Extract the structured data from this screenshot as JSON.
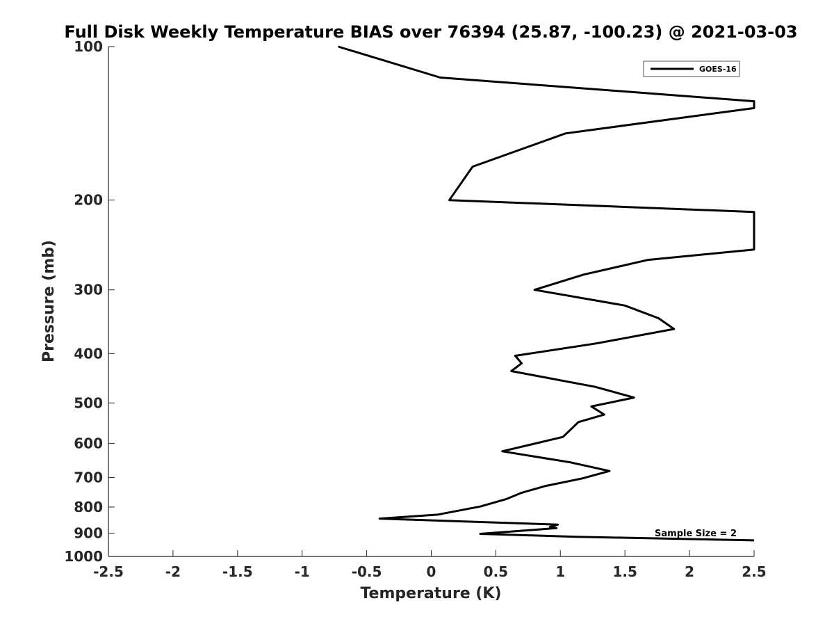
{
  "chart_data": {
    "type": "line",
    "title": "Full Disk Weekly Temperature BIAS over 76394 (25.87, -100.23) @ 2021-03-03",
    "xlabel": "Temperature (K)",
    "ylabel": "Pressure (mb)",
    "xlim": [
      -2.5,
      2.5
    ],
    "ylim": [
      100,
      1000
    ],
    "y_scale": "log",
    "y_reversed": true,
    "xticks": [
      -2.5,
      -2,
      -1.5,
      -1,
      -0.5,
      0,
      0.5,
      1,
      1.5,
      2,
      2.5
    ],
    "xtick_labels": [
      "-2.5",
      "-2",
      "-1.5",
      "-1",
      "-0.5",
      "0",
      "0.5",
      "1",
      "1.5",
      "2",
      "2.5"
    ],
    "yticks": [
      100,
      200,
      300,
      400,
      500,
      600,
      700,
      800,
      900,
      1000
    ],
    "ytick_labels": [
      "100",
      "200",
      "300",
      "400",
      "500",
      "600",
      "700",
      "800",
      "900",
      "1000"
    ],
    "grid": false,
    "legend_position": "top-right",
    "line_color": "#000000",
    "series": [
      {
        "name": "GOES-16",
        "points": [
          {
            "x": -0.72,
            "p": 100
          },
          {
            "x": 0.07,
            "p": 115
          },
          {
            "x": 2.5,
            "p": 128
          },
          {
            "x": 2.5,
            "p": 132
          },
          {
            "x": 1.04,
            "p": 148
          },
          {
            "x": 0.32,
            "p": 172
          },
          {
            "x": 0.14,
            "p": 200
          },
          {
            "x": 2.5,
            "p": 211
          },
          {
            "x": 2.5,
            "p": 250
          },
          {
            "x": 1.68,
            "p": 262
          },
          {
            "x": 1.18,
            "p": 280
          },
          {
            "x": 0.8,
            "p": 300
          },
          {
            "x": 1.5,
            "p": 322
          },
          {
            "x": 1.76,
            "p": 341
          },
          {
            "x": 1.88,
            "p": 358
          },
          {
            "x": 1.28,
            "p": 382
          },
          {
            "x": 0.65,
            "p": 404
          },
          {
            "x": 0.7,
            "p": 418
          },
          {
            "x": 0.62,
            "p": 433
          },
          {
            "x": 1.27,
            "p": 465
          },
          {
            "x": 1.57,
            "p": 488
          },
          {
            "x": 1.24,
            "p": 508
          },
          {
            "x": 1.34,
            "p": 527
          },
          {
            "x": 1.14,
            "p": 545
          },
          {
            "x": 1.02,
            "p": 583
          },
          {
            "x": 0.55,
            "p": 622
          },
          {
            "x": 1.08,
            "p": 654
          },
          {
            "x": 1.38,
            "p": 680
          },
          {
            "x": 1.17,
            "p": 703
          },
          {
            "x": 0.88,
            "p": 728
          },
          {
            "x": 0.7,
            "p": 750
          },
          {
            "x": 0.58,
            "p": 772
          },
          {
            "x": 0.38,
            "p": 798
          },
          {
            "x": 0.05,
            "p": 828
          },
          {
            "x": -0.4,
            "p": 843
          },
          {
            "x": 0.98,
            "p": 866
          },
          {
            "x": 0.92,
            "p": 875
          },
          {
            "x": 0.97,
            "p": 880
          },
          {
            "x": 0.38,
            "p": 903
          },
          {
            "x": 1.12,
            "p": 915
          },
          {
            "x": 2.5,
            "p": 930
          }
        ]
      }
    ],
    "annotation": "Sample Size = 2"
  }
}
